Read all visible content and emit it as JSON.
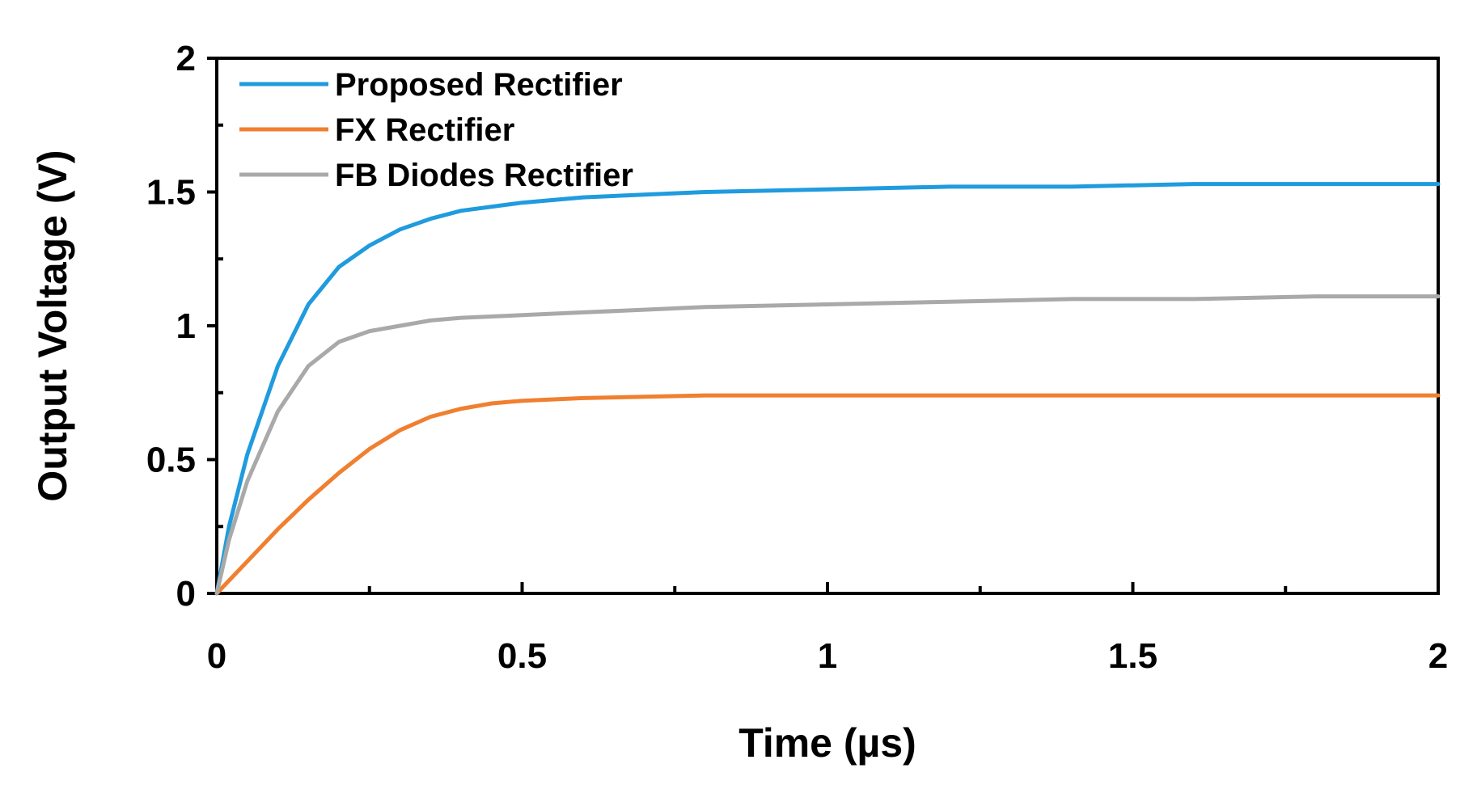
{
  "chart_data": {
    "type": "line",
    "title": "",
    "xlabel": "Time (µs)",
    "ylabel": "Output Voltage (V)",
    "xlim": [
      0,
      2
    ],
    "ylim": [
      0,
      2
    ],
    "x_ticks": [
      0,
      0.5,
      1,
      1.5,
      2
    ],
    "x_tick_labels": [
      "0",
      "0.5",
      "1",
      "1.5",
      "2"
    ],
    "y_ticks": [
      0,
      0.5,
      1,
      1.5,
      2
    ],
    "y_tick_labels": [
      "0",
      "0.5",
      "1",
      "1.5",
      "2"
    ],
    "grid": false,
    "legend_position": "top-left",
    "series": [
      {
        "name": "Proposed Rectifier",
        "color": "#1f9bde",
        "x": [
          0,
          0.02,
          0.05,
          0.1,
          0.15,
          0.2,
          0.25,
          0.3,
          0.35,
          0.4,
          0.5,
          0.6,
          0.7,
          0.8,
          1.0,
          1.2,
          1.4,
          1.6,
          1.8,
          2.0
        ],
        "y": [
          0,
          0.25,
          0.52,
          0.85,
          1.08,
          1.22,
          1.3,
          1.36,
          1.4,
          1.43,
          1.46,
          1.48,
          1.49,
          1.5,
          1.51,
          1.52,
          1.52,
          1.53,
          1.53,
          1.53
        ]
      },
      {
        "name": "FX Rectifier",
        "color": "#f07f2f",
        "x": [
          0,
          0.05,
          0.1,
          0.15,
          0.2,
          0.25,
          0.3,
          0.35,
          0.4,
          0.45,
          0.5,
          0.6,
          0.7,
          0.8,
          1.0,
          1.2,
          1.5,
          1.8,
          2.0
        ],
        "y": [
          0,
          0.12,
          0.24,
          0.35,
          0.45,
          0.54,
          0.61,
          0.66,
          0.69,
          0.71,
          0.72,
          0.73,
          0.735,
          0.74,
          0.74,
          0.74,
          0.74,
          0.74,
          0.74
        ]
      },
      {
        "name": "FB Diodes Rectifier",
        "color": "#a9a9a9",
        "x": [
          0,
          0.02,
          0.05,
          0.1,
          0.15,
          0.2,
          0.25,
          0.3,
          0.35,
          0.4,
          0.5,
          0.6,
          0.7,
          0.8,
          1.0,
          1.2,
          1.4,
          1.6,
          1.8,
          2.0
        ],
        "y": [
          0,
          0.2,
          0.42,
          0.68,
          0.85,
          0.94,
          0.98,
          1.0,
          1.02,
          1.03,
          1.04,
          1.05,
          1.06,
          1.07,
          1.08,
          1.09,
          1.1,
          1.1,
          1.11,
          1.11
        ]
      }
    ]
  }
}
